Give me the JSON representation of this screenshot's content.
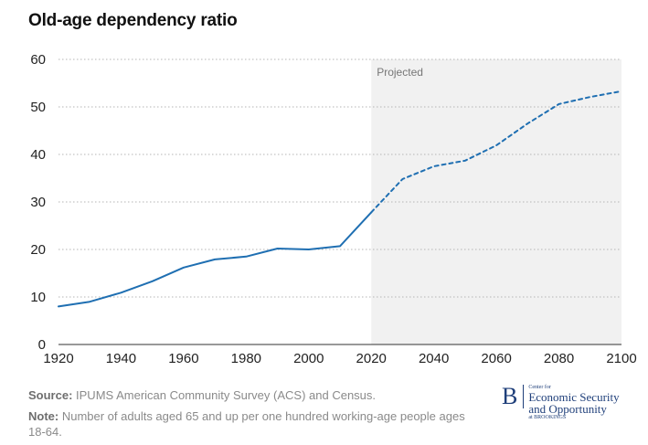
{
  "chart_data": {
    "type": "line",
    "title": "Old-age dependency ratio",
    "xlim": [
      1920,
      2100
    ],
    "ylim": [
      0,
      60
    ],
    "xticks": [
      1920,
      1940,
      1960,
      1980,
      2000,
      2020,
      2040,
      2060,
      2080,
      2100
    ],
    "yticks": [
      0,
      10,
      20,
      30,
      40,
      50,
      60
    ],
    "grid": "horizontal-dotted",
    "projected_region": {
      "label": "Projected",
      "from": 2020,
      "to": 2100
    },
    "series": [
      {
        "style": "solid",
        "color": "#1f6fb2",
        "x": [
          1920,
          1930,
          1940,
          1950,
          1960,
          1970,
          1980,
          1990,
          2000,
          2010,
          2020
        ],
        "y": [
          8.0,
          9.0,
          10.9,
          13.3,
          16.2,
          17.9,
          18.5,
          20.2,
          20.0,
          20.7,
          27.8
        ]
      },
      {
        "style": "dashed",
        "color": "#1f6fb2",
        "x": [
          2020,
          2030,
          2040,
          2050,
          2060,
          2070,
          2080,
          2090,
          2100
        ],
        "y": [
          27.8,
          34.8,
          37.5,
          38.7,
          41.9,
          46.5,
          50.6,
          52.1,
          53.3
        ]
      }
    ]
  },
  "footer": {
    "source_label": "Source:",
    "source_text": " IPUMS American Community Survey (ACS) and Census.",
    "note_label": "Note:",
    "note_text": " Number of adults aged 65 and up per one hundred working-age people ages 18-64."
  },
  "logo": {
    "mark": "B",
    "line1": "Center for",
    "line2": "Economic Security",
    "line3": "and Opportunity",
    "line4": "at BROOKINGS"
  }
}
